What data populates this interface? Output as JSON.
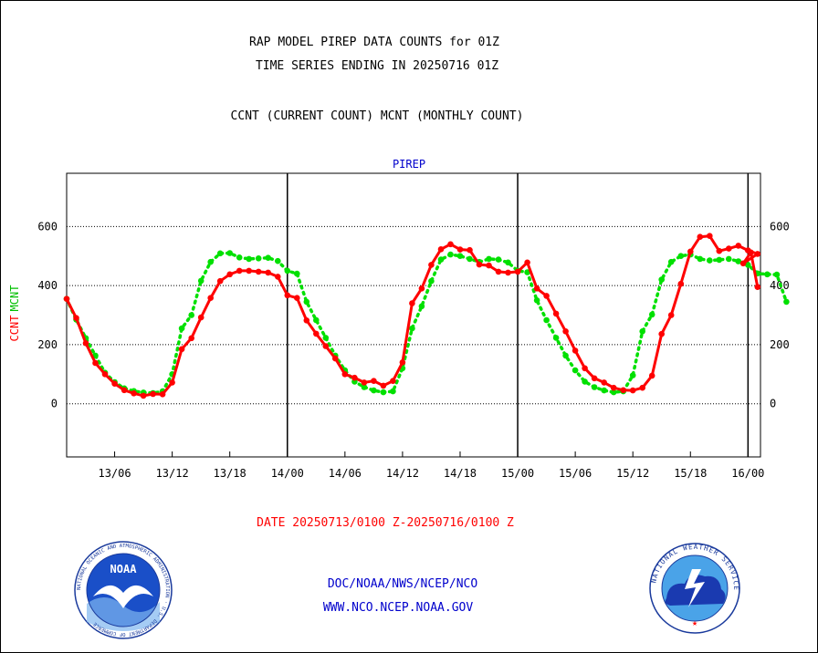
{
  "header": {
    "title_line1": "RAP MODEL PIREP DATA COUNTS for 01Z",
    "title_line2": "TIME SERIES ENDING IN 20250716 01Z",
    "subtitle": "CCNT (CURRENT COUNT) MCNT (MONTHLY COUNT)"
  },
  "footer": {
    "date_range": "DATE 20250713/0100 Z-20250716/0100 Z",
    "org_line": "DOC/NOAA/NWS/NCEP/NCO",
    "url_line": "WWW.NCO.NCEP.NOAA.GOV",
    "noaa_logo_text": "NOAA",
    "noaa_ring_text": "NATIONAL OCEANIC AND ATMOSPHERIC ADMINISTRATION · U.S. DEPARTMENT OF COMMERCE",
    "nws_ring_text": "NATIONAL WEATHER SERVICE"
  },
  "colors": {
    "ccnt": "#ff0000",
    "mcnt": "#00e000",
    "plot_title": "#0000cc",
    "footer_red": "#ff0000",
    "footer_blue": "#0000cc"
  },
  "chart_data": {
    "type": "line",
    "title": "PIREP",
    "xlabel": "",
    "ylabel_series": [
      "CCNT",
      "MCNT"
    ],
    "ylim": [
      -180,
      780
    ],
    "yticks": [
      0,
      200,
      400,
      600
    ],
    "x_ticks": [
      {
        "label": "13/06",
        "hour": 5
      },
      {
        "label": "13/12",
        "hour": 11
      },
      {
        "label": "13/18",
        "hour": 17
      },
      {
        "label": "14/00",
        "hour": 23
      },
      {
        "label": "14/06",
        "hour": 29
      },
      {
        "label": "14/12",
        "hour": 35
      },
      {
        "label": "14/18",
        "hour": 41
      },
      {
        "label": "15/00",
        "hour": 47
      },
      {
        "label": "15/06",
        "hour": 53
      },
      {
        "label": "15/12",
        "hour": 59
      },
      {
        "label": "15/18",
        "hour": 65
      },
      {
        "label": "16/00",
        "hour": 71
      }
    ],
    "day_boundaries": [
      23,
      47,
      71
    ],
    "x_range": [
      0,
      72.3
    ],
    "x_unit": "hours from 2025-07-13 01Z",
    "grid": true,
    "series": [
      {
        "name": "CCNT",
        "values": [
          355,
          290,
          205,
          138,
          100,
          68,
          46,
          35,
          27,
          33,
          32,
          72,
          185,
          222,
          292,
          358,
          415,
          438,
          450,
          450,
          447,
          444,
          430,
          367,
          358,
          282,
          237,
          195,
          153,
          100,
          88,
          72,
          77,
          61,
          77,
          140,
          340,
          390,
          470,
          523,
          540,
          522,
          520,
          471,
          468,
          447,
          444,
          447,
          478,
          390,
          365,
          305,
          245,
          180,
          120,
          86,
          72,
          54,
          46,
          45,
          54,
          95,
          236,
          300,
          406,
          515,
          565,
          568,
          517,
          525,
          535,
          519,
          507,
          475,
          512,
          395
        ],
        "x_override": {
          "75": 72.0,
          "74": 71.3,
          "73": 70.5
        }
      },
      {
        "name": "MCNT",
        "values": [
          355,
          285,
          222,
          163,
          105,
          73,
          52,
          43,
          38,
          36,
          42,
          100,
          255,
          300,
          416,
          480,
          509,
          510,
          495,
          490,
          492,
          494,
          483,
          450,
          440,
          345,
          283,
          223,
          163,
          113,
          75,
          56,
          45,
          39,
          42,
          120,
          255,
          330,
          415,
          488,
          505,
          500,
          490,
          480,
          490,
          488,
          478,
          450,
          445,
          350,
          283,
          223,
          163,
          113,
          75,
          56,
          45,
          39,
          42,
          96,
          245,
          302,
          420,
          480,
          500,
          505,
          490,
          485,
          487,
          490,
          482,
          470,
          441,
          438,
          437,
          345
        ]
      }
    ]
  }
}
